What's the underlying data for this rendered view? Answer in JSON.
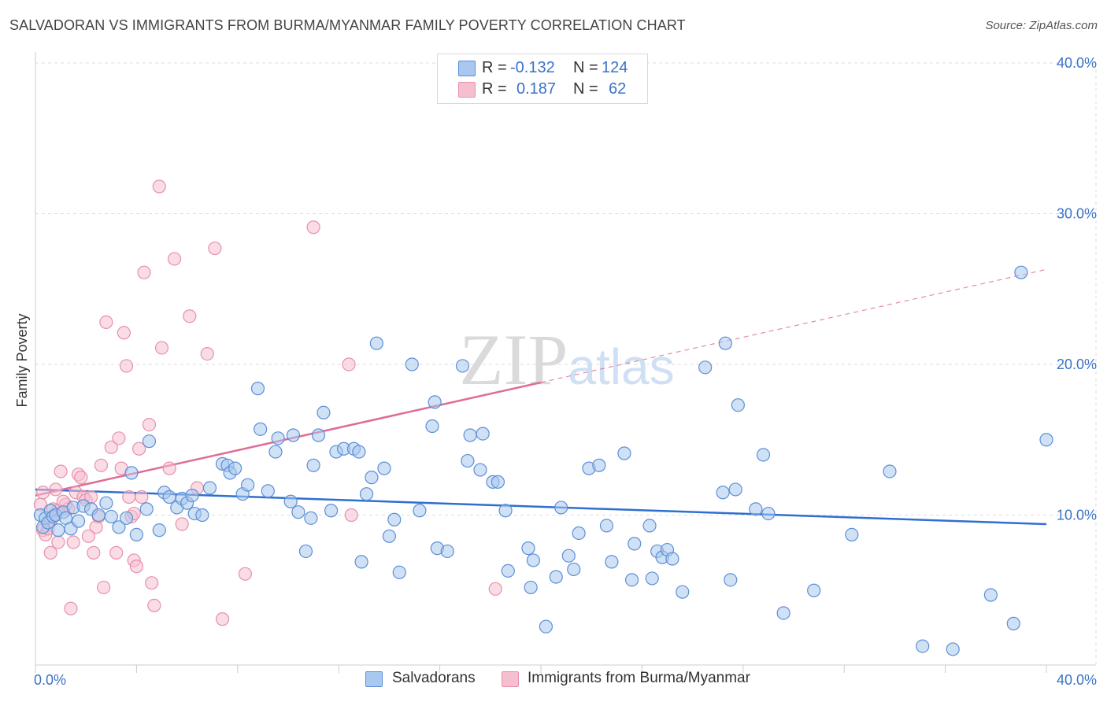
{
  "title": "SALVADORAN VS IMMIGRANTS FROM BURMA/MYANMAR FAMILY POVERTY CORRELATION CHART",
  "source": "Source: ZipAtlas.com",
  "watermark": "ZIPatlas",
  "legend": {
    "rows": [
      {
        "r_label": "R =",
        "r_value": "-0.132",
        "n_label": "N =",
        "n_value": "124"
      },
      {
        "r_label": "R =",
        "r_value": "0.187",
        "n_label": "N =",
        "n_value": "62"
      }
    ]
  },
  "bottom_legend": [
    "Salvadorans",
    "Immigrants from Burma/Myanmar"
  ],
  "colors": {
    "blue_fill": "#a9c8ef",
    "blue_stroke": "#5b8fd6",
    "blue_line": "#2f6fcf",
    "pink_fill": "#f6bfd0",
    "pink_stroke": "#e890ad",
    "pink_line": "#e06b96",
    "axis_text": "#3a72c9",
    "grid": "#dddddd"
  },
  "chart_data": {
    "type": "scatter",
    "title": "SALVADORAN VS IMMIGRANTS FROM BURMA/MYANMAR FAMILY POVERTY CORRELATION CHART",
    "xlabel": "",
    "ylabel": "Family Poverty",
    "xlim": [
      0,
      40
    ],
    "ylim": [
      0,
      40
    ],
    "x_tick_labels": [
      "0.0%",
      "40.0%"
    ],
    "y_ticks": [
      10,
      20,
      30,
      40
    ],
    "y_tick_labels": [
      "10.0%",
      "20.0%",
      "30.0%",
      "40.0%"
    ],
    "grid": true,
    "series": [
      {
        "name": "Salvadorans",
        "r": -0.132,
        "n": 124,
        "trend": {
          "x": [
            0,
            40
          ],
          "y": [
            11.7,
            9.4
          ],
          "dashed_from": null
        },
        "points": [
          [
            0.2,
            10
          ],
          [
            0.3,
            9.2
          ],
          [
            0.4,
            9.8
          ],
          [
            0.5,
            9.5
          ],
          [
            0.6,
            10.3
          ],
          [
            0.7,
            9.9
          ],
          [
            0.8,
            10
          ],
          [
            0.9,
            9
          ],
          [
            1.1,
            10.2
          ],
          [
            1.2,
            9.8
          ],
          [
            1.4,
            9.1
          ],
          [
            1.5,
            10.5
          ],
          [
            1.7,
            9.6
          ],
          [
            1.9,
            10.6
          ],
          [
            2.2,
            10.4
          ],
          [
            2.5,
            10
          ],
          [
            2.8,
            10.8
          ],
          [
            3,
            9.9
          ],
          [
            3.3,
            9.2
          ],
          [
            3.6,
            9.8
          ],
          [
            3.8,
            12.8
          ],
          [
            4,
            8.7
          ],
          [
            4.4,
            10.4
          ],
          [
            4.5,
            14.9
          ],
          [
            4.9,
            9
          ],
          [
            5.1,
            11.5
          ],
          [
            5.3,
            11.2
          ],
          [
            5.6,
            10.5
          ],
          [
            5.8,
            11.1
          ],
          [
            6,
            10.8
          ],
          [
            6.2,
            11.3
          ],
          [
            6.3,
            10.1
          ],
          [
            6.6,
            10
          ],
          [
            6.9,
            11.8
          ],
          [
            7.4,
            13.4
          ],
          [
            7.6,
            13.3
          ],
          [
            7.7,
            12.8
          ],
          [
            7.9,
            13.1
          ],
          [
            8.2,
            11.4
          ],
          [
            8.4,
            12
          ],
          [
            8.8,
            18.4
          ],
          [
            8.9,
            15.7
          ],
          [
            9.2,
            11.6
          ],
          [
            9.5,
            14.2
          ],
          [
            9.6,
            15.1
          ],
          [
            10.1,
            10.9
          ],
          [
            10.2,
            15.3
          ],
          [
            10.4,
            10.2
          ],
          [
            10.7,
            7.6
          ],
          [
            10.9,
            9.8
          ],
          [
            11,
            13.3
          ],
          [
            11.2,
            15.3
          ],
          [
            11.4,
            16.8
          ],
          [
            11.7,
            10.3
          ],
          [
            11.9,
            14.2
          ],
          [
            12.2,
            14.4
          ],
          [
            12.6,
            14.4
          ],
          [
            12.8,
            14.2
          ],
          [
            12.9,
            6.9
          ],
          [
            13.1,
            11.4
          ],
          [
            13.3,
            12.5
          ],
          [
            13.5,
            21.4
          ],
          [
            13.8,
            13.1
          ],
          [
            14,
            8.6
          ],
          [
            14.2,
            9.7
          ],
          [
            14.4,
            6.2
          ],
          [
            14.9,
            20
          ],
          [
            15.2,
            10.3
          ],
          [
            15.7,
            15.9
          ],
          [
            15.8,
            17.5
          ],
          [
            15.9,
            7.8
          ],
          [
            16.3,
            7.6
          ],
          [
            16.9,
            19.9
          ],
          [
            17.1,
            13.6
          ],
          [
            17.2,
            15.3
          ],
          [
            17.6,
            13
          ],
          [
            17.7,
            15.4
          ],
          [
            18.1,
            12.2
          ],
          [
            18.3,
            12.2
          ],
          [
            18.6,
            10.3
          ],
          [
            18.7,
            6.3
          ],
          [
            19.5,
            7.8
          ],
          [
            19.6,
            5.2
          ],
          [
            19.7,
            7
          ],
          [
            20.2,
            2.6
          ],
          [
            20.6,
            5.9
          ],
          [
            20.8,
            10.5
          ],
          [
            21.1,
            7.3
          ],
          [
            21.3,
            6.4
          ],
          [
            21.5,
            8.8
          ],
          [
            21.9,
            13.1
          ],
          [
            22.3,
            13.3
          ],
          [
            22.6,
            9.3
          ],
          [
            22.8,
            6.9
          ],
          [
            23.3,
            14.1
          ],
          [
            23.6,
            5.7
          ],
          [
            23.7,
            8.1
          ],
          [
            24.3,
            9.3
          ],
          [
            24.4,
            5.8
          ],
          [
            24.6,
            7.6
          ],
          [
            24.8,
            7.2
          ],
          [
            25,
            7.7
          ],
          [
            25.2,
            7.1
          ],
          [
            25.6,
            4.9
          ],
          [
            26.5,
            19.8
          ],
          [
            27.2,
            11.5
          ],
          [
            27.3,
            21.4
          ],
          [
            27.5,
            5.7
          ],
          [
            27.7,
            11.7
          ],
          [
            27.8,
            17.3
          ],
          [
            28.5,
            10.4
          ],
          [
            28.8,
            14
          ],
          [
            29,
            10.1
          ],
          [
            29.6,
            3.5
          ],
          [
            30.8,
            5
          ],
          [
            32.3,
            8.7
          ],
          [
            33.8,
            12.9
          ],
          [
            35.1,
            1.3
          ],
          [
            36.3,
            1.1
          ],
          [
            37.8,
            4.7
          ],
          [
            38.7,
            2.8
          ],
          [
            39,
            26.1
          ],
          [
            40,
            15
          ]
        ]
      },
      {
        "name": "Immigrants from Burma/Myanmar",
        "r": 0.187,
        "n": 62,
        "trend": {
          "x": [
            0,
            40
          ],
          "y": [
            11.3,
            26.3
          ],
          "dashed_from": 20
        },
        "points": [
          [
            0.2,
            10.7
          ],
          [
            0.3,
            9
          ],
          [
            0.4,
            8.7
          ],
          [
            0.5,
            9.1
          ],
          [
            0.6,
            7.5
          ],
          [
            0.7,
            10.4
          ],
          [
            0.8,
            11.7
          ],
          [
            0.9,
            8.2
          ],
          [
            1,
            12.9
          ],
          [
            1.2,
            10.7
          ],
          [
            1.3,
            10.4
          ],
          [
            1.5,
            8.2
          ],
          [
            1.6,
            11.5
          ],
          [
            1.7,
            12.7
          ],
          [
            1.8,
            12.5
          ],
          [
            1.9,
            11.2
          ],
          [
            2,
            11
          ],
          [
            2.2,
            11.2
          ],
          [
            2.3,
            7.5
          ],
          [
            2.4,
            9.2
          ],
          [
            2.6,
            13.3
          ],
          [
            2.7,
            5.2
          ],
          [
            2.8,
            22.8
          ],
          [
            3,
            14.5
          ],
          [
            3.2,
            7.5
          ],
          [
            3.3,
            15.1
          ],
          [
            3.4,
            13.1
          ],
          [
            3.5,
            22.1
          ],
          [
            3.6,
            19.9
          ],
          [
            3.7,
            11.2
          ],
          [
            3.8,
            9.9
          ],
          [
            3.9,
            7
          ],
          [
            4,
            6.6
          ],
          [
            4.1,
            14.4
          ],
          [
            4.2,
            11.2
          ],
          [
            4.3,
            26.1
          ],
          [
            4.5,
            16
          ],
          [
            4.6,
            5.5
          ],
          [
            4.7,
            4
          ],
          [
            4.9,
            31.8
          ],
          [
            5,
            21.1
          ],
          [
            5.3,
            13.1
          ],
          [
            5.5,
            27
          ],
          [
            5.8,
            9.4
          ],
          [
            6.1,
            23.2
          ],
          [
            6.4,
            11.8
          ],
          [
            6.8,
            20.7
          ],
          [
            7.1,
            27.7
          ],
          [
            7.4,
            3.1
          ],
          [
            8.3,
            6.1
          ],
          [
            11,
            29.1
          ],
          [
            12.4,
            20
          ],
          [
            12.5,
            10
          ],
          [
            18.2,
            5.1
          ],
          [
            1.4,
            3.8
          ],
          [
            2.1,
            8.6
          ],
          [
            0.9,
            10.3
          ],
          [
            0.6,
            9.6
          ],
          [
            1.1,
            10.9
          ],
          [
            2.5,
            9.9
          ],
          [
            3.9,
            10.1
          ],
          [
            0.3,
            11.5
          ]
        ]
      }
    ]
  }
}
